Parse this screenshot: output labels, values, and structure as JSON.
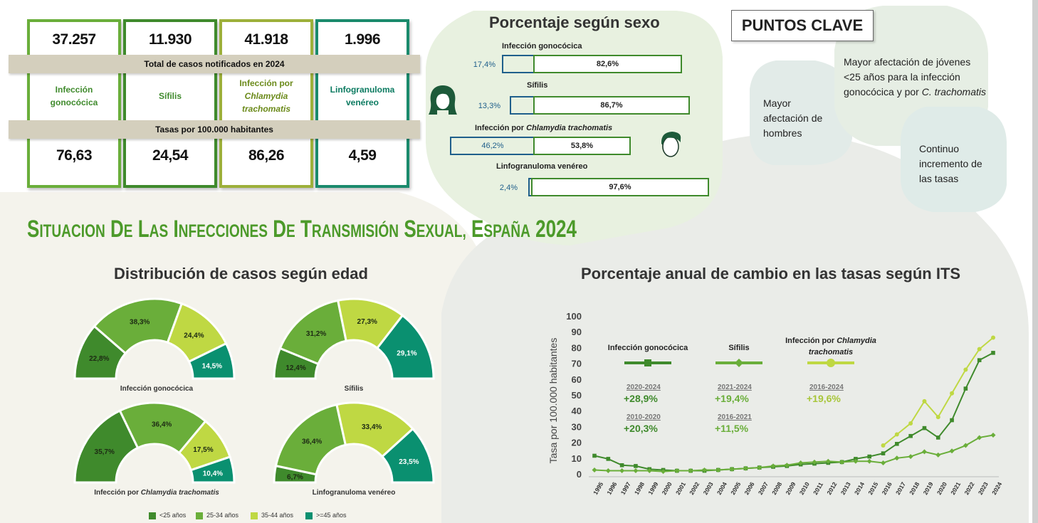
{
  "colors": {
    "dark_green": "#3f8a2c",
    "green": "#6aae3a",
    "light_green": "#bfd843",
    "teal": "#0a9070",
    "olive": "#9db03a",
    "band": "#d4cfbd",
    "title_green": "#4c9a2a"
  },
  "summary": {
    "cases": [
      "37.257",
      "11.930",
      "41.918",
      "1.996"
    ],
    "cases_band": "Total de casos notificados en 2024",
    "diseases": [
      {
        "line1": "Infección",
        "line2": "gonocócica",
        "line3": ""
      },
      {
        "line1": "Sífilis",
        "line2": "",
        "line3": ""
      },
      {
        "line1": "Infección por",
        "line2": "Chlamydia",
        "line3": "trachomatis"
      },
      {
        "line1": "Linfogranuloma",
        "line2": "venéreo",
        "line3": ""
      }
    ],
    "rates_band": "Tasas por 100.000 habitantes",
    "rates": [
      "76,63",
      "24,54",
      "86,26",
      "4,59"
    ]
  },
  "sex": {
    "title": "Porcentaje según sexo",
    "rows": [
      {
        "label": "Infección gonocócica",
        "label_italic": "",
        "female": "17,4%",
        "male": "82,6%"
      },
      {
        "label": "Sífilis",
        "label_italic": "",
        "female": "13,3%",
        "male": "86,7%"
      },
      {
        "label": "Infección por ",
        "label_italic": "Chlamydia trachomatis",
        "female": "46,2%",
        "male": "53,8%"
      },
      {
        "label": "Linfogranuloma venéreo",
        "label_italic": "",
        "female": "2,4%",
        "male": "97,6%"
      }
    ]
  },
  "key_points": {
    "title": "PUNTOS CLAVE",
    "p1": "Mayor afectación de hombres",
    "p2a": "Mayor afectación de jóvenes <25 años para la infección gonocócica y por ",
    "p2b": "C. trachomatis",
    "p3": "Continuo incremento de las tasas"
  },
  "main_title": "Situacion de las Infecciones de Transmisión Sexual, España 2024",
  "age": {
    "title": "Distribución de casos según edad",
    "charts": [
      {
        "name": "Infección gonocócica",
        "name_italic": "",
        "values": [
          "22,8%",
          "38,3%",
          "24,4%",
          "14,5%"
        ],
        "fractions": [
          22.8,
          38.3,
          24.4,
          14.5
        ]
      },
      {
        "name": "Sífilis",
        "name_italic": "",
        "values": [
          "12,4%",
          "31,2%",
          "27,3%",
          "29,1%"
        ],
        "fractions": [
          12.4,
          31.2,
          27.3,
          29.1
        ]
      },
      {
        "name": "Infección por ",
        "name_italic": "Chlamydia trachomatis",
        "values": [
          "35,7%",
          "36,4%",
          "17,5%",
          "10,4%"
        ],
        "fractions": [
          35.7,
          36.4,
          17.5,
          10.4
        ]
      },
      {
        "name": "Linfogranuloma venéreo",
        "name_italic": "",
        "values": [
          "6,7%",
          "36,4%",
          "33,4%",
          "23,5%"
        ],
        "fractions": [
          6.7,
          36.4,
          33.4,
          23.5
        ]
      }
    ],
    "legend": [
      "<25 años",
      "25-34 años",
      "35-44 años",
      ">=45 años"
    ]
  },
  "trend": {
    "title": "Porcentaje anual de cambio en las tasas según ITS",
    "ylabel": "Tasa por 100.000 habitantes",
    "legend": [
      {
        "name": "Infección gonocócica",
        "italic": ""
      },
      {
        "name": "Sífilis",
        "italic": ""
      },
      {
        "name": "Infección por ",
        "italic": "Chlamydia trachomatis"
      }
    ],
    "stats": [
      [
        {
          "period": "2020-2024",
          "value": "+28,9%"
        },
        {
          "period": "2010-2020",
          "value": "+20,3%"
        }
      ],
      [
        {
          "period": "2021-2024",
          "value": "+19,4%"
        },
        {
          "period": "2016-2021",
          "value": "+11,5%"
        }
      ],
      [
        {
          "period": "2016-2024",
          "value": "+19,6%"
        }
      ]
    ]
  },
  "chart_data": [
    {
      "type": "line",
      "title": "Porcentaje anual de cambio en las tasas según ITS",
      "ylabel": "Tasa por 100.000 habitantes",
      "ylim": [
        0,
        100
      ],
      "x": [
        "1995",
        "1996",
        "1997",
        "1998",
        "1999",
        "2000",
        "2001",
        "2002",
        "2003",
        "2004",
        "2005",
        "2006",
        "2007",
        "2008",
        "2009",
        "2010",
        "2011",
        "2012",
        "2013",
        "2014",
        "2015",
        "2016",
        "2017",
        "2018",
        "2019",
        "2020",
        "2021",
        "2022",
        "2023",
        "2024"
      ],
      "series": [
        {
          "name": "Infección gonocócica",
          "values": [
            11.5,
            9.5,
            5.5,
            5,
            3,
            2.5,
            2,
            2,
            2,
            2.5,
            3,
            3.5,
            4,
            4.5,
            5,
            6,
            6.5,
            7,
            7.5,
            9.5,
            11,
            13,
            19,
            24,
            29,
            23,
            34,
            54,
            72,
            76.63
          ]
        },
        {
          "name": "Sífilis",
          "values": [
            2.5,
            2,
            2,
            2,
            2,
            1.5,
            2,
            2,
            2.5,
            2.5,
            3,
            3.5,
            4,
            5,
            5.5,
            7,
            7.5,
            8,
            7.5,
            8,
            8,
            7,
            10,
            11,
            14,
            12,
            14.5,
            18,
            23,
            24.54
          ]
        },
        {
          "name": "Infección por Chlamydia trachomatis",
          "values": [
            null,
            null,
            null,
            null,
            null,
            null,
            null,
            null,
            null,
            null,
            null,
            null,
            null,
            null,
            null,
            null,
            null,
            null,
            null,
            null,
            null,
            18,
            25,
            32,
            46,
            36,
            51,
            66,
            79,
            86.26
          ]
        }
      ]
    }
  ]
}
